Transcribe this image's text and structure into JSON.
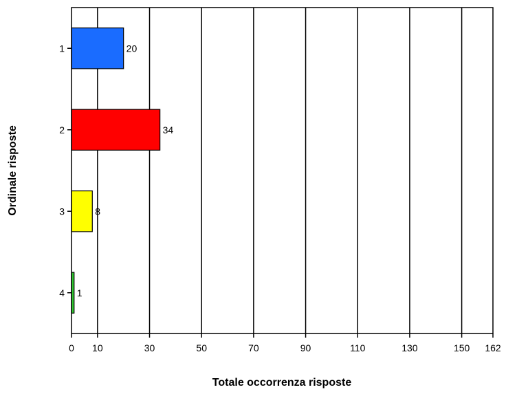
{
  "chart_data": {
    "type": "bar",
    "orientation": "horizontal",
    "categories": [
      "1",
      "2",
      "3",
      "4"
    ],
    "values": [
      20,
      34,
      8,
      1
    ],
    "colors": [
      "#1a6cff",
      "#ff0000",
      "#ffff00",
      "#33cc33"
    ],
    "xlabel": "Totale occorrenza risposte",
    "ylabel": "Ordinale risposte",
    "xlim": [
      0,
      162
    ],
    "xticks": [
      0,
      10,
      30,
      50,
      70,
      90,
      110,
      130,
      150,
      162
    ],
    "grid": "vertical",
    "legend": "none"
  }
}
